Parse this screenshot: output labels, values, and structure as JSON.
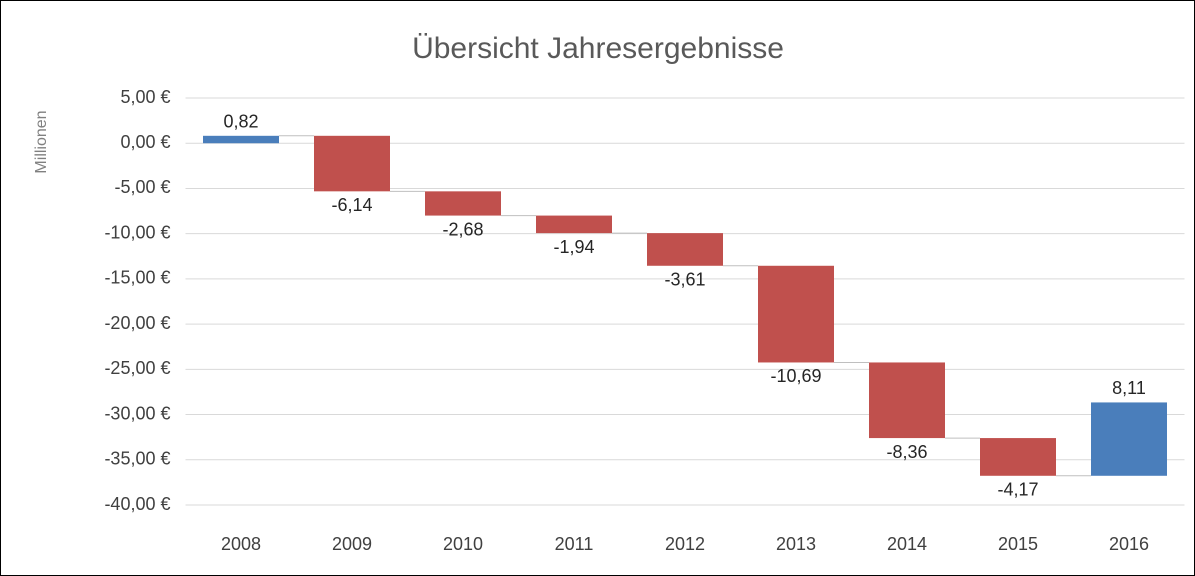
{
  "chart_data": {
    "type": "waterfall",
    "title": "Übersicht Jahresergebnisse",
    "y_label": "Millionen",
    "categories": [
      "2008",
      "2009",
      "2010",
      "2011",
      "2012",
      "2013",
      "2014",
      "2015",
      "2016"
    ],
    "values": [
      0.82,
      -6.14,
      -2.68,
      -1.94,
      -3.61,
      -10.69,
      -8.36,
      -4.17,
      8.11
    ],
    "value_labels": [
      "0,82",
      "-6,14",
      "-2,68",
      "-1,94",
      "-3,61",
      "-10,69",
      "-8,36",
      "-4,17",
      "8,11"
    ],
    "positive_color": "#4a7ebb",
    "negative_color": "#c0504d",
    "ylim": [
      -40,
      5
    ],
    "yticks": [
      {
        "value": 5,
        "label": "5,00 €"
      },
      {
        "value": 0,
        "label": "0,00 €"
      },
      {
        "value": -5,
        "label": "-5,00 €"
      },
      {
        "value": -10,
        "label": "-10,00 €"
      },
      {
        "value": -15,
        "label": "-15,00 €"
      },
      {
        "value": -20,
        "label": "-20,00 €"
      },
      {
        "value": -25,
        "label": "-25,00 €"
      },
      {
        "value": -30,
        "label": "-30,00 €"
      },
      {
        "value": -35,
        "label": "-35,00 €"
      },
      {
        "value": -40,
        "label": "-40,00 €"
      }
    ],
    "grid": true
  }
}
